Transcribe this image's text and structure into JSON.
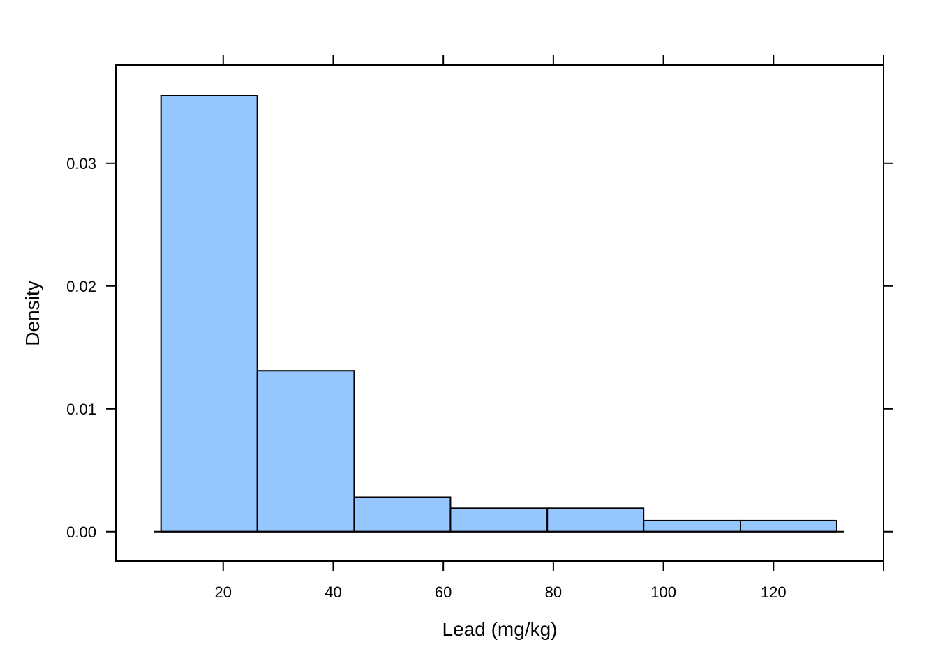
{
  "chart_data": {
    "type": "bar",
    "xlabel": "Lead (mg/kg)",
    "ylabel": "Density",
    "bin_edges": [
      8.7,
      26.2,
      43.8,
      61.3,
      78.9,
      96.4,
      114.0,
      131.5
    ],
    "values": [
      0.0355,
      0.0131,
      0.0028,
      0.0019,
      0.0019,
      0.0009,
      0.0009
    ],
    "xlim": [
      0.5,
      140
    ],
    "ylim": [
      -0.0024,
      0.038
    ],
    "x_ticks": [
      20,
      40,
      60,
      80,
      100,
      120
    ],
    "x_tick_labels": [
      "20",
      "40",
      "60",
      "80",
      "100",
      "120"
    ],
    "y_ticks": [
      0,
      0.01,
      0.02,
      0.03
    ],
    "y_tick_labels": [
      "0.00",
      "0.01",
      "0.02",
      "0.03"
    ],
    "bar_fill": "#95c6fe",
    "bar_stroke": "#000000",
    "grid": false
  }
}
